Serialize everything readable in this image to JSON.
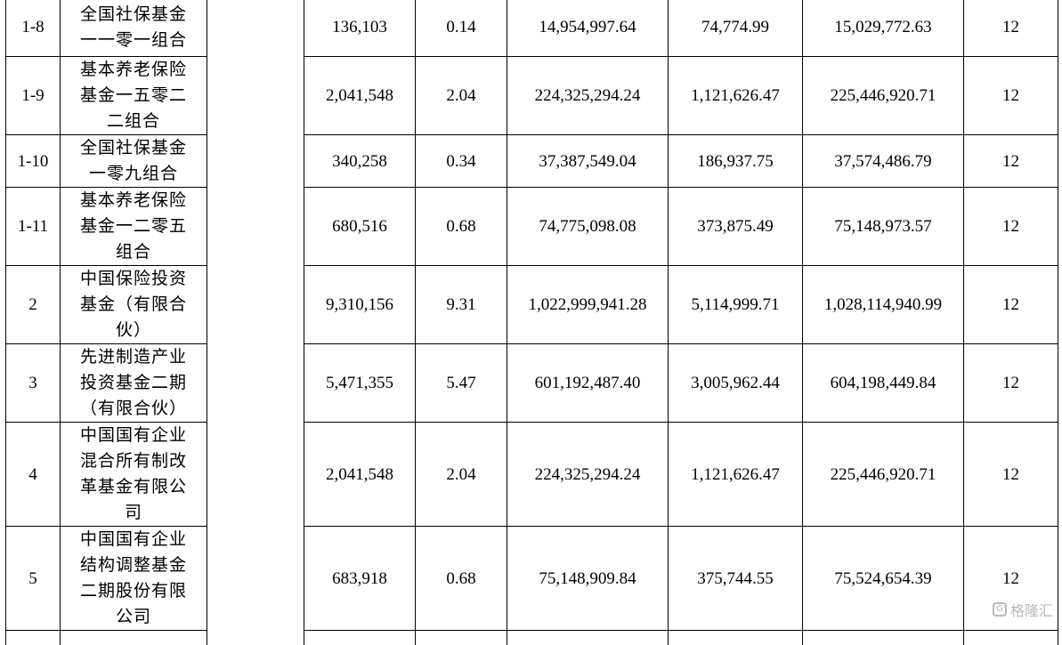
{
  "rows": [
    {
      "no": "1-8",
      "name": [
        "全国社保基金",
        "一一零一组合"
      ],
      "shares": "136,103",
      "pct": "0.14",
      "amount": "14,954,997.64",
      "extra": "74,774.99",
      "total": "15,029,772.63",
      "months": "12"
    },
    {
      "no": "1-9",
      "name": [
        "基本养老保险",
        "基金一五零二",
        "二组合"
      ],
      "shares": "2,041,548",
      "pct": "2.04",
      "amount": "224,325,294.24",
      "extra": "1,121,626.47",
      "total": "225,446,920.71",
      "months": "12"
    },
    {
      "no": "1-10",
      "name": [
        "全国社保基金",
        "一零九组合"
      ],
      "shares": "340,258",
      "pct": "0.34",
      "amount": "37,387,549.04",
      "extra": "186,937.75",
      "total": "37,574,486.79",
      "months": "12"
    },
    {
      "no": "1-11",
      "name": [
        "基本养老保险",
        "基金一二零五",
        "组合"
      ],
      "shares": "680,516",
      "pct": "0.68",
      "amount": "74,775,098.08",
      "extra": "373,875.49",
      "total": "75,148,973.57",
      "months": "12"
    },
    {
      "no": "2",
      "name": [
        "中国保险投资",
        "基金（有限合",
        "伙）"
      ],
      "shares": "9,310,156",
      "pct": "9.31",
      "amount": "1,022,999,941.28",
      "extra": "5,114,999.71",
      "total": "1,028,114,940.99",
      "months": "12"
    },
    {
      "no": "3",
      "name": [
        "先进制造产业",
        "投资基金二期",
        "（有限合伙）"
      ],
      "shares": "5,471,355",
      "pct": "5.47",
      "amount": "601,192,487.40",
      "extra": "3,005,962.44",
      "total": "604,198,449.84",
      "months": "12"
    },
    {
      "no": "4",
      "name": [
        "中国国有企业",
        "混合所有制改",
        "革基金有限公",
        "司"
      ],
      "shares": "2,041,548",
      "pct": "2.04",
      "amount": "224,325,294.24",
      "extra": "1,121,626.47",
      "total": "225,446,920.71",
      "months": "12"
    },
    {
      "no": "5",
      "name": [
        "中国国有企业",
        "结构调整基金",
        "二期股份有限",
        "公司"
      ],
      "shares": "683,918",
      "pct": "0.68",
      "amount": "75,148,909.84",
      "extra": "375,744.55",
      "total": "75,524,654.39",
      "months": "12"
    }
  ],
  "watermark": {
    "text": "格隆汇",
    "logo_glyph": "G"
  }
}
